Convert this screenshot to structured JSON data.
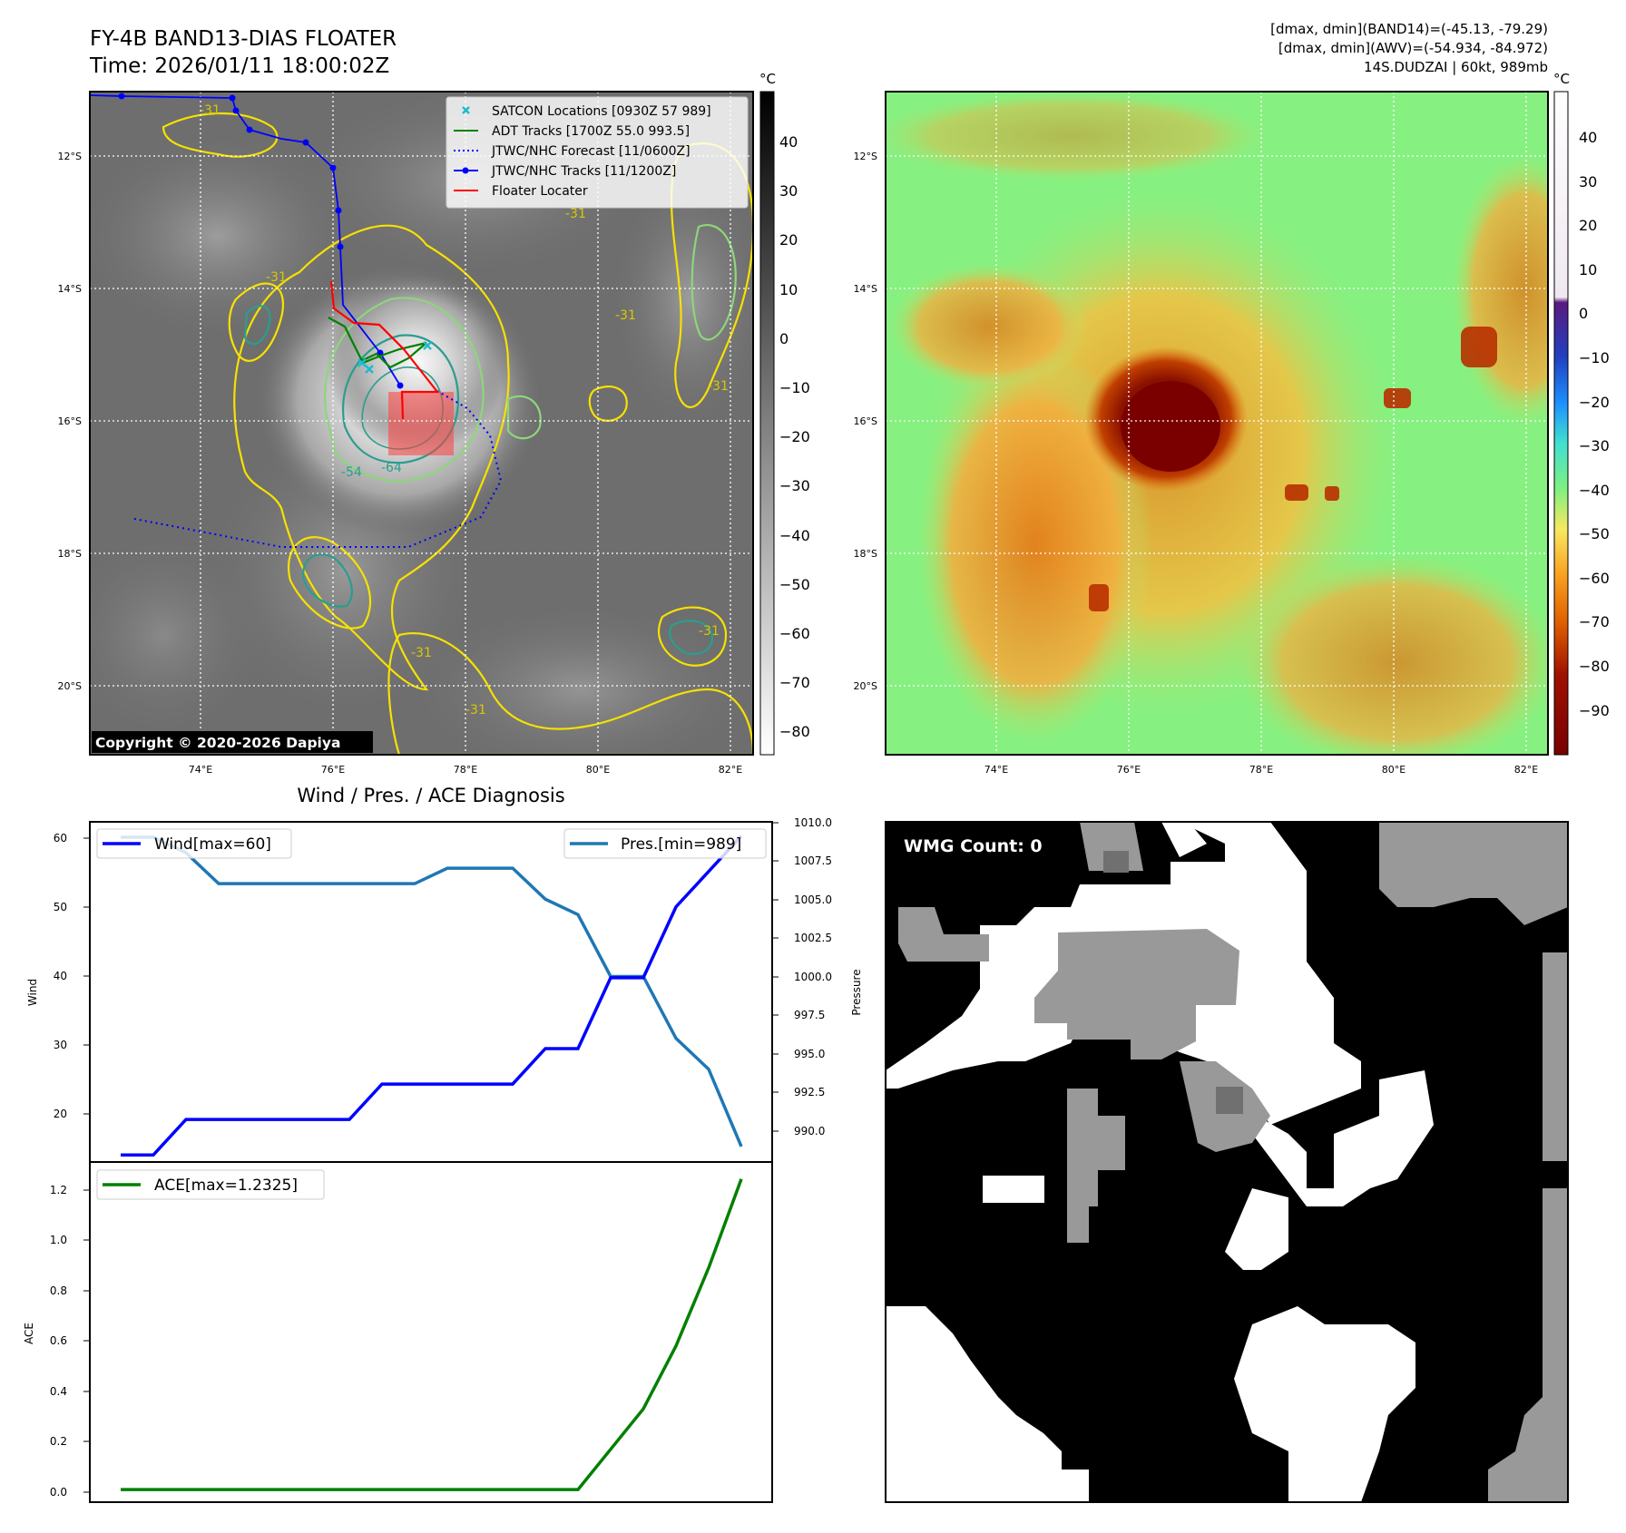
{
  "header": {
    "title_line1": "FY-4B BAND13-DIAS FLOATER",
    "title_line2": "Time: 2026/01/11 18:00:02Z",
    "info_line1": "[dmax, dmin](BAND14)=(-45.13, -79.29)",
    "info_line2": "[dmax, dmin](AWV)=(-54.934, -84.972)",
    "info_line3": "14S.DUDZAI | 60kt, 989mb"
  },
  "ir_map": {
    "lat_labels": [
      "12°S",
      "14°S",
      "16°S",
      "18°S",
      "20°S"
    ],
    "lon_labels": [
      "74°E",
      "76°E",
      "78°E",
      "80°E",
      "82°E"
    ],
    "colorbar_unit": "°C",
    "colorbar_ticks": [
      "40",
      "30",
      "20",
      "10",
      "0",
      "−10",
      "−20",
      "−30",
      "−40",
      "−50",
      "−60",
      "−70",
      "−80"
    ],
    "contour_labels": [
      "-31",
      "-31",
      "-31",
      "-31",
      "-31",
      "-31",
      "-31",
      "-31",
      "-54",
      "-64"
    ],
    "legend": [
      {
        "label": "SATCON Locations [0930Z 57 989]",
        "color": "#17becf",
        "marker": "x"
      },
      {
        "label": "ADT Tracks [1700Z 55.0 993.5]",
        "color": "#008000",
        "marker": "line"
      },
      {
        "label": "JTWC/NHC Forecast [11/0600Z]",
        "color": "#0000ff",
        "marker": "dotted"
      },
      {
        "label": "JTWC/NHC Tracks [11/1200Z]",
        "color": "#0000ff",
        "marker": "line-dot"
      },
      {
        "label": "Floater Locater",
        "color": "#ff0000",
        "marker": "line"
      }
    ],
    "copyright": "Copyright © 2020-2026 Dapiya"
  },
  "awv_map": {
    "lat_labels": [
      "12°S",
      "14°S",
      "16°S",
      "18°S",
      "20°S"
    ],
    "lon_labels": [
      "74°E",
      "76°E",
      "78°E",
      "80°E",
      "82°E"
    ],
    "colorbar_unit": "°C",
    "colorbar_ticks": [
      "40",
      "30",
      "20",
      "10",
      "0",
      "−10",
      "−20",
      "−30",
      "−40",
      "−50",
      "−60",
      "−70",
      "−80",
      "−90"
    ]
  },
  "diagnosis": {
    "title": "Wind / Pres. / ACE Diagnosis",
    "wind_axis_label": "Wind",
    "pressure_axis_label": "Pressure",
    "ace_axis_label": "ACE",
    "wind_ticks": [
      "60",
      "50",
      "40",
      "30",
      "20"
    ],
    "pressure_ticks": [
      "1010.0",
      "1007.5",
      "1005.0",
      "1002.5",
      "1000.0",
      "997.5",
      "995.0",
      "992.5",
      "990.0"
    ],
    "ace_ticks": [
      "1.2",
      "1.0",
      "0.8",
      "0.6",
      "0.4",
      "0.2",
      "0.0"
    ],
    "legend_wind": "Wind[max=60]",
    "legend_pres": "Pres.[min=989]",
    "legend_ace": "ACE[max=1.2325]"
  },
  "wmg": {
    "label": "WMG Count: 0"
  },
  "chart_data": [
    {
      "type": "line",
      "title": "Wind / Pres. / ACE Diagnosis",
      "ylabel": "Wind",
      "y2label": "Pressure",
      "x": [
        0,
        1,
        2,
        3,
        4,
        5,
        6,
        7,
        8,
        9,
        10,
        11,
        12,
        13,
        14,
        15,
        16,
        17,
        18,
        19
      ],
      "ylim": [
        14,
        62
      ],
      "y2lim": [
        988.0,
        1010.0
      ],
      "series": [
        {
          "name": "Wind[max=60]",
          "axis": "left",
          "color": "#0000ff",
          "values": [
            15,
            15,
            20,
            20,
            20,
            20,
            20,
            20,
            25,
            25,
            25,
            25,
            25,
            30,
            30,
            40,
            40,
            50,
            55,
            60
          ]
        },
        {
          "name": "Pres.[min=989]",
          "axis": "right",
          "color": "#1f77b4",
          "values": [
            1009,
            1009,
            1008,
            1006,
            1006,
            1006,
            1006,
            1006,
            1006,
            1006,
            1007,
            1007,
            1007,
            1005,
            1004,
            1000,
            1000,
            996,
            994,
            989
          ]
        }
      ]
    },
    {
      "type": "line",
      "ylabel": "ACE",
      "x": [
        0,
        1,
        2,
        3,
        4,
        5,
        6,
        7,
        8,
        9,
        10,
        11,
        12,
        13,
        14,
        15,
        16,
        17,
        18,
        19
      ],
      "ylim": [
        -0.05,
        1.3
      ],
      "series": [
        {
          "name": "ACE[max=1.2325]",
          "color": "#008000",
          "values": [
            0,
            0,
            0,
            0,
            0,
            0,
            0,
            0,
            0,
            0,
            0,
            0,
            0,
            0,
            0,
            0.16,
            0.32,
            0.57,
            0.88,
            1.2325
          ]
        }
      ]
    }
  ]
}
